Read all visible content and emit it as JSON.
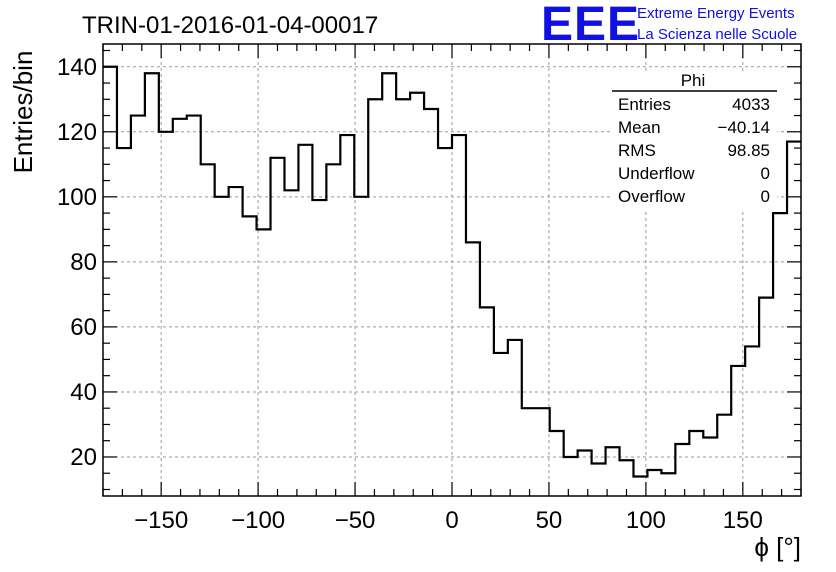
{
  "header": {
    "run_title": "TRIN-01-2016-01-04-00017",
    "logo_letters": "EEE",
    "logo_line1": "Extreme Energy Events",
    "logo_line2": "La Scienza nelle Scuole",
    "logo_color": "#1010e0"
  },
  "stats_box": {
    "title": "Phi",
    "rows": [
      {
        "label": "Entries",
        "value": "4033"
      },
      {
        "label": "Mean",
        "value": "−40.14"
      },
      {
        "label": "RMS",
        "value": "98.85"
      },
      {
        "label": "Underflow",
        "value": "0"
      },
      {
        "label": "Overflow",
        "value": "0"
      }
    ]
  },
  "chart_data": {
    "type": "bar",
    "style": "step-histogram",
    "title": "TRIN-01-2016-01-04-00017",
    "xlabel": "ϕ [°]",
    "ylabel": "Entries/bin",
    "xlim": [
      -180,
      180
    ],
    "ylim": [
      8,
      147
    ],
    "bin_width": 7.2,
    "x_ticks": [
      -150,
      -100,
      -50,
      0,
      50,
      100,
      150
    ],
    "x_tick_labels": [
      "−150",
      "−100",
      "−50",
      "0",
      "50",
      "100",
      "150"
    ],
    "y_ticks": [
      20,
      40,
      60,
      80,
      100,
      120,
      140
    ],
    "y_tick_labels": [
      "20",
      "40",
      "60",
      "80",
      "100",
      "120",
      "140"
    ],
    "grid": true,
    "line_color": "#000000",
    "bin_edges_start": -180,
    "values": [
      140,
      115,
      125,
      138,
      120,
      124,
      125,
      110,
      100,
      103,
      94,
      90,
      112,
      102,
      116,
      99,
      110,
      119,
      100,
      130,
      138,
      130,
      132,
      127,
      115,
      119,
      86,
      66,
      52,
      56,
      35,
      35,
      28,
      20,
      22,
      18,
      23,
      19,
      14,
      16,
      15,
      24,
      28,
      26,
      33,
      48,
      54,
      69,
      95,
      117
    ]
  }
}
